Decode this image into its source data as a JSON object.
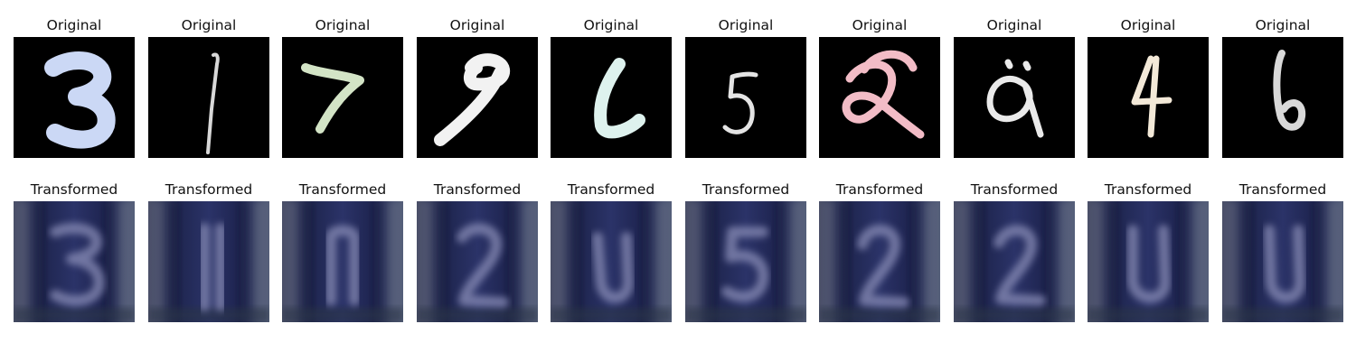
{
  "rows": [
    {
      "name": "original",
      "titles": [
        "Original",
        "Original",
        "Original",
        "Original",
        "Original",
        "Original",
        "Original",
        "Original",
        "Original",
        "Original"
      ],
      "digits": [
        {
          "glyph": "3",
          "color": "#cbd8f5"
        },
        {
          "glyph": "1",
          "color": "#d8d8d8"
        },
        {
          "glyph": "7",
          "color": "#d3e4c6"
        },
        {
          "glyph": "9",
          "color": "#f2f2f2"
        },
        {
          "glyph": "6",
          "color": "#def2ee"
        },
        {
          "glyph": "5",
          "color": "#e4e4e4"
        },
        {
          "glyph": "2",
          "color": "#f2bcc6"
        },
        {
          "glyph": "a",
          "color": "#eaeaea"
        },
        {
          "glyph": "4",
          "color": "#f3e9d8"
        },
        {
          "glyph": "6",
          "color": "#d9d9d9"
        }
      ]
    },
    {
      "name": "transformed",
      "titles": [
        "Transformed",
        "Transformed",
        "Transformed",
        "Transformed",
        "Transformed",
        "Transformed",
        "Transformed",
        "Transformed",
        "Transformed",
        "Transformed"
      ]
    }
  ]
}
